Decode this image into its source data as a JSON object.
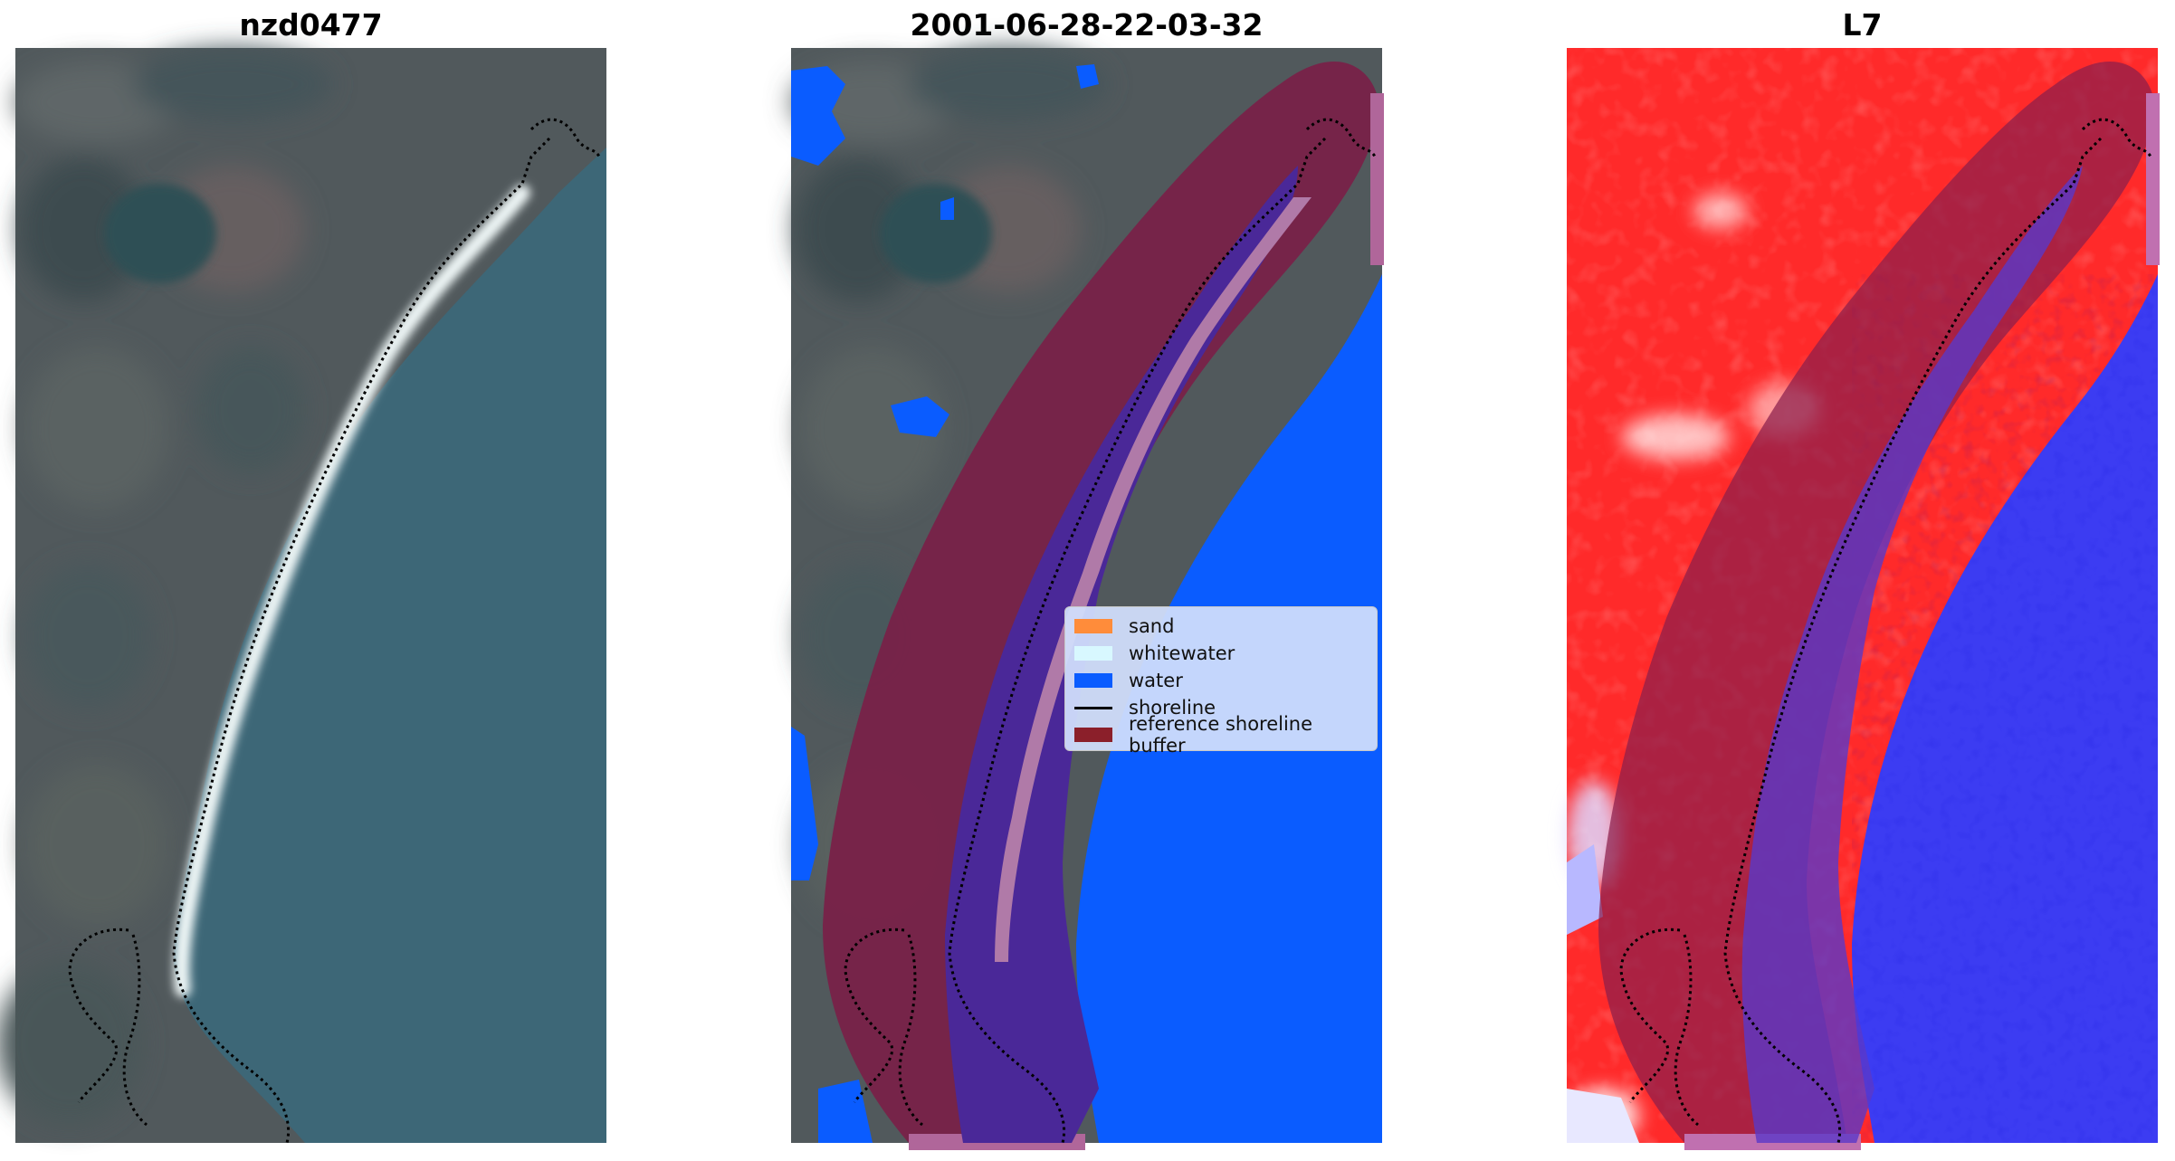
{
  "panels": [
    {
      "title": "nzd0477",
      "name": "rgb-image"
    },
    {
      "title": "2001-06-28-22-03-32",
      "name": "classified-image"
    },
    {
      "title": "L7",
      "name": "index-image"
    }
  ],
  "legend": {
    "items": [
      {
        "label": "sand",
        "color": "#ff8c3a",
        "kind": "patch"
      },
      {
        "label": "whitewater",
        "color": "#d8f8ff",
        "kind": "patch"
      },
      {
        "label": "water",
        "color": "#0a5cff",
        "kind": "patch"
      },
      {
        "label": "shoreline",
        "color": "#000000",
        "kind": "line"
      },
      {
        "label": "reference shoreline buffer",
        "color": "#8b1f2a",
        "kind": "patch"
      }
    ]
  },
  "colors": {
    "land": "#4e5a5e",
    "sea": "#3a6878",
    "beach": "#e8f2f4",
    "water_class": "#0a5cff",
    "water_in_buffer": "#4a2898",
    "buffer": "#7a2048",
    "whitewater_in_buffer": "#b07aa8",
    "index_land": "#ff2020",
    "index_water": "#3a3af0",
    "index_buffer_land": "#c01848",
    "index_buffer_water": "#5a38c8"
  }
}
